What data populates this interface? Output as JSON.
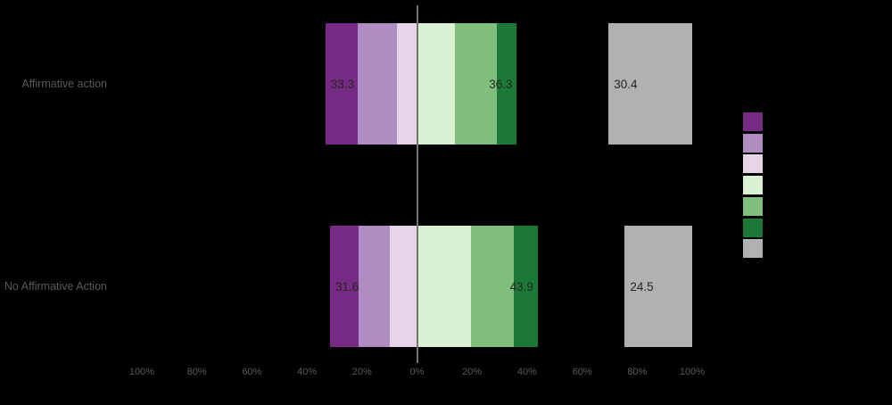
{
  "chart_data": {
    "type": "bar",
    "subtype": "diverging-stacked-bar-likert",
    "orientation": "horizontal",
    "categories": [
      "Affirmative action",
      "No Affirmative Action"
    ],
    "axis_range_percent": [
      -100,
      100
    ],
    "x_axis": {
      "tick_percents": [
        -100,
        -80,
        -60,
        -40,
        -20,
        0,
        20,
        40,
        60,
        80,
        100
      ],
      "tick_labels": [
        "100%",
        "80%",
        "60%",
        "40%",
        "20%",
        "0%",
        "20%",
        "40%",
        "60%",
        "80%",
        "100%"
      ]
    },
    "rows": [
      {
        "label": "Affirmative action",
        "neg_total": 33.3,
        "neg_label": "33.3",
        "neg_segments": [
          11.6,
          14.4,
          7.3
        ],
        "pos_total": 36.3,
        "pos_label": "36.3",
        "pos_segments": [
          13.9,
          15.0,
          7.4
        ],
        "side_total": 30.4,
        "side_label": "30.4"
      },
      {
        "label": "No Affirmative Action",
        "neg_total": 31.6,
        "neg_label": "31.6",
        "neg_segments": [
          10.4,
          11.2,
          10.0
        ],
        "pos_total": 43.9,
        "pos_label": "43.9",
        "pos_segments": [
          19.7,
          15.5,
          8.7
        ],
        "side_total": 24.5,
        "side_label": "24.5"
      }
    ],
    "neg_colors": [
      "#762a83",
      "#af8dc3",
      "#e7d4e8"
    ],
    "pos_colors": [
      "#d9f0d3",
      "#7fbf7b",
      "#1b7837"
    ],
    "side_color": "#b1b1b1",
    "side_bars_right_aligned_at_percent": 100,
    "legend": {
      "swatch_colors": [
        "#762a83",
        "#af8dc3",
        "#e7d4e8",
        "#d9f0d3",
        "#7fbf7b",
        "#1b7837",
        "#b1b1b1"
      ],
      "labels_visible": false
    },
    "grid": false
  },
  "styles": {
    "background": "#000000",
    "category_label_color": "#595959",
    "tick_label_color": "#595959",
    "value_label_color": "#262626",
    "zero_line_color": "#737373"
  }
}
